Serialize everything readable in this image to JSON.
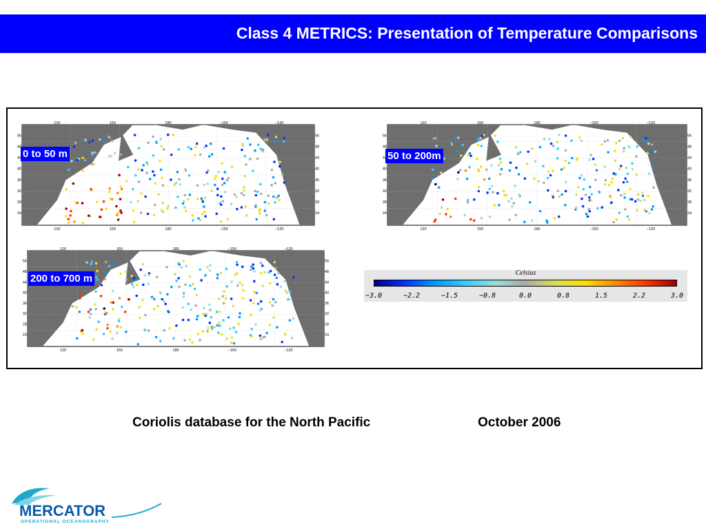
{
  "header": {
    "title": "Class 4 METRICS: Presentation of Temperature Comparisons",
    "background": "#0000ff"
  },
  "maps": [
    {
      "label": "0 to 50 m",
      "top_ticks": [
        "120",
        "150",
        "180",
        "−150",
        "−120"
      ],
      "bottom_ticks": [
        "120",
        "150",
        "180",
        "−150",
        "−120"
      ],
      "lat_ticks": [
        "56",
        "48",
        "44",
        "40",
        "36",
        "32",
        "28",
        "24"
      ]
    },
    {
      "label": "50 to 200m",
      "top_ticks": [
        "120",
        "150",
        "180",
        "−150",
        "−120"
      ],
      "bottom_ticks": [
        "120",
        "150",
        "180",
        "−150",
        "−120"
      ],
      "lat_ticks": [
        "56",
        "48",
        "44",
        "40",
        "36",
        "32",
        "28",
        "24"
      ]
    },
    {
      "label": "200 to 700 m",
      "top_ticks": [
        "120",
        "150",
        "180",
        "−150",
        "−120"
      ],
      "bottom_ticks": [
        "120",
        "150",
        "180",
        "−150",
        "−120"
      ],
      "lat_ticks": [
        "56",
        "48",
        "44",
        "40",
        "36",
        "32",
        "28",
        "24"
      ]
    }
  ],
  "colorbar": {
    "title": "Celsius",
    "ticks": [
      "−3.0",
      "−2.2",
      "−1.5",
      "−0.8",
      "0.0",
      "0.8",
      "1.5",
      "2.2",
      "3.0"
    ],
    "colors": [
      "#00008b",
      "#0033ff",
      "#0099ff",
      "#33ccff",
      "#99dddd",
      "#aaaaaa",
      "#dddd55",
      "#ffdd00",
      "#ff8800",
      "#ff3300",
      "#990000"
    ]
  },
  "caption": {
    "source": "Coriolis database for the North Pacific",
    "date": "October 2006"
  },
  "logo": {
    "name": "MERCATOR",
    "tagline": "OPERATIONAL OCEANOGRAPHY"
  }
}
